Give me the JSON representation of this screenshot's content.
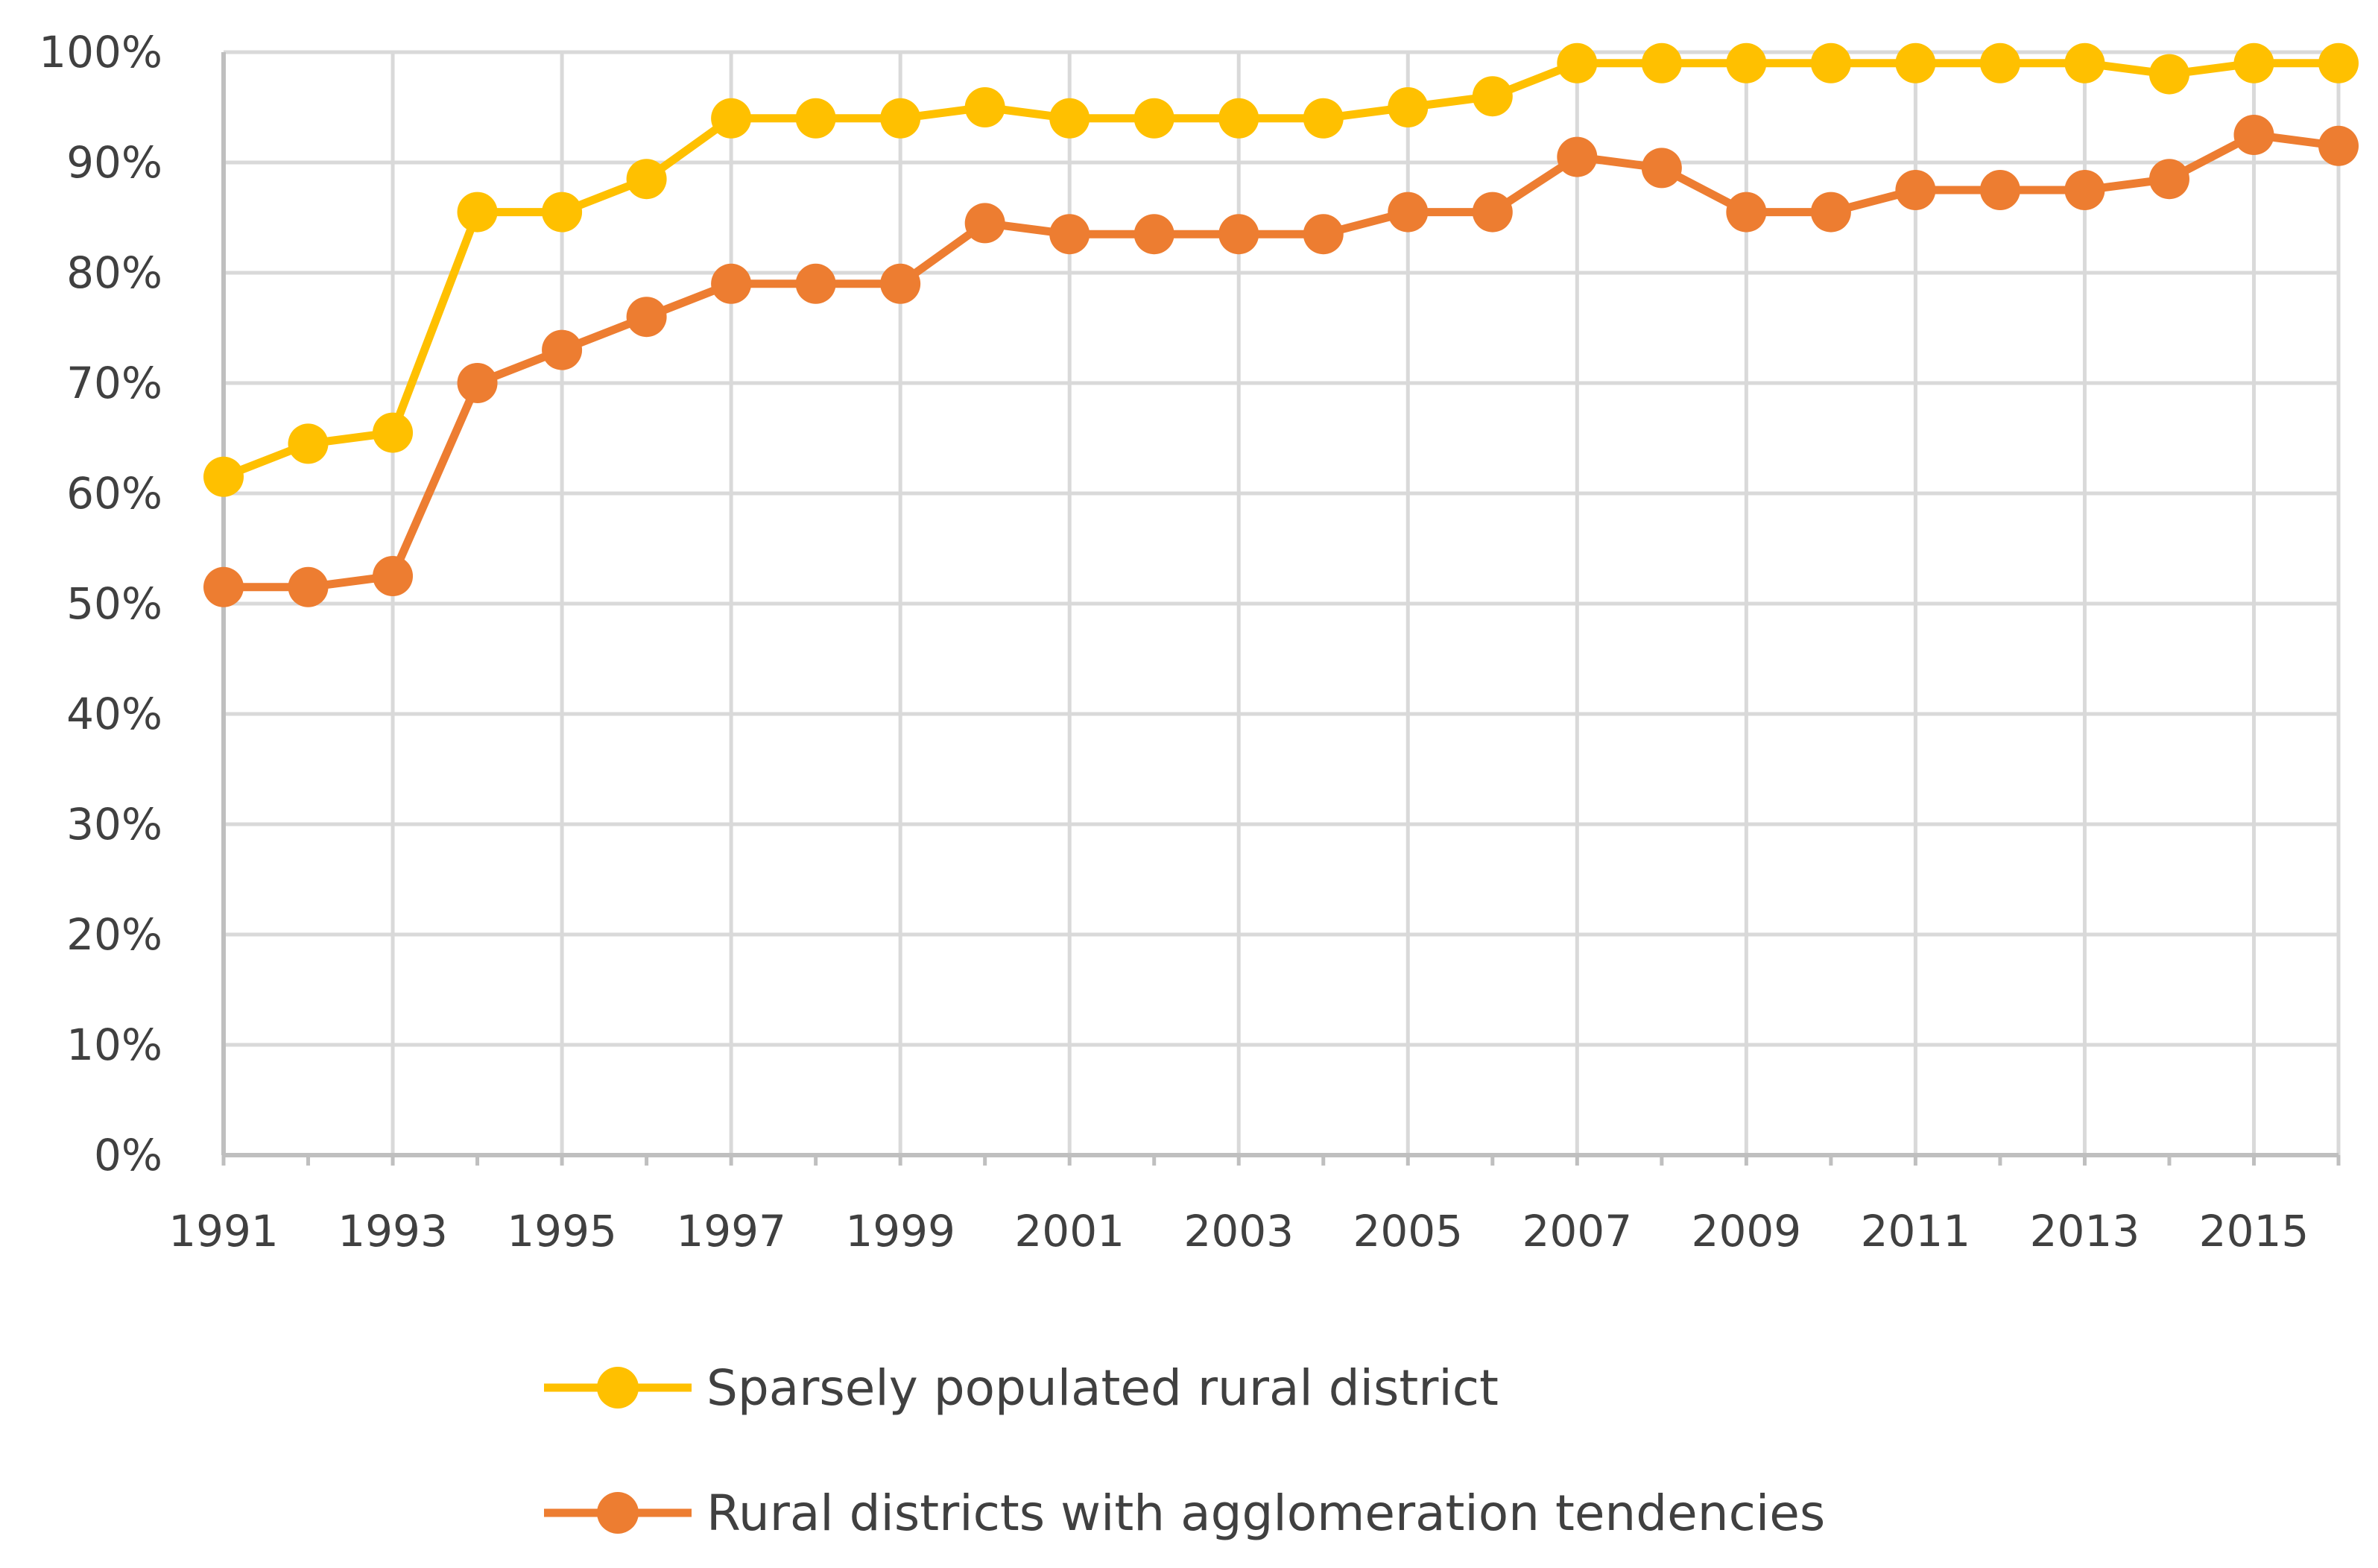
{
  "chart_data": {
    "type": "line",
    "title": "",
    "xlabel": "",
    "ylabel": "",
    "x": [
      1991,
      1992,
      1993,
      1994,
      1995,
      1996,
      1997,
      1998,
      1999,
      2000,
      2001,
      2002,
      2003,
      2004,
      2005,
      2006,
      2007,
      2008,
      2009,
      2010,
      2011,
      2012,
      2013,
      2014,
      2015,
      2016
    ],
    "x_tick_labels": [
      "1991",
      "1993",
      "1995",
      "1997",
      "1999",
      "2001",
      "2003",
      "2005",
      "2007",
      "2009",
      "2011",
      "2013",
      "2015"
    ],
    "y_tick_labels": [
      "0%",
      "10%",
      "20%",
      "30%",
      "40%",
      "50%",
      "60%",
      "70%",
      "80%",
      "90%",
      "100%"
    ],
    "ylim": [
      0,
      100
    ],
    "y_unit": "%",
    "grid": true,
    "legend_position": "bottom",
    "series": [
      {
        "name": "Sparsely populated rural district",
        "color": "#FFC000",
        "values": [
          61.5,
          64.5,
          65.5,
          85.5,
          85.5,
          88.5,
          94,
          94,
          94,
          95,
          94,
          94,
          94,
          94,
          95,
          96,
          99,
          99,
          99,
          99,
          99,
          99,
          99,
          98,
          99,
          99
        ]
      },
      {
        "name": "Rural districts with agglomeration tendencies",
        "color": "#ED7D31",
        "values": [
          51.5,
          51.5,
          52.5,
          70,
          73,
          76,
          79,
          79,
          79,
          84.5,
          83.5,
          83.5,
          83.5,
          83.5,
          85.5,
          85.5,
          90.5,
          89.5,
          85.5,
          85.5,
          87.5,
          87.5,
          87.5,
          88.5,
          92.5,
          91.5
        ]
      }
    ]
  },
  "colors": {
    "gridline": "#D9D9D9",
    "axis": "#BFBFBF",
    "tick_text": "#404040"
  }
}
